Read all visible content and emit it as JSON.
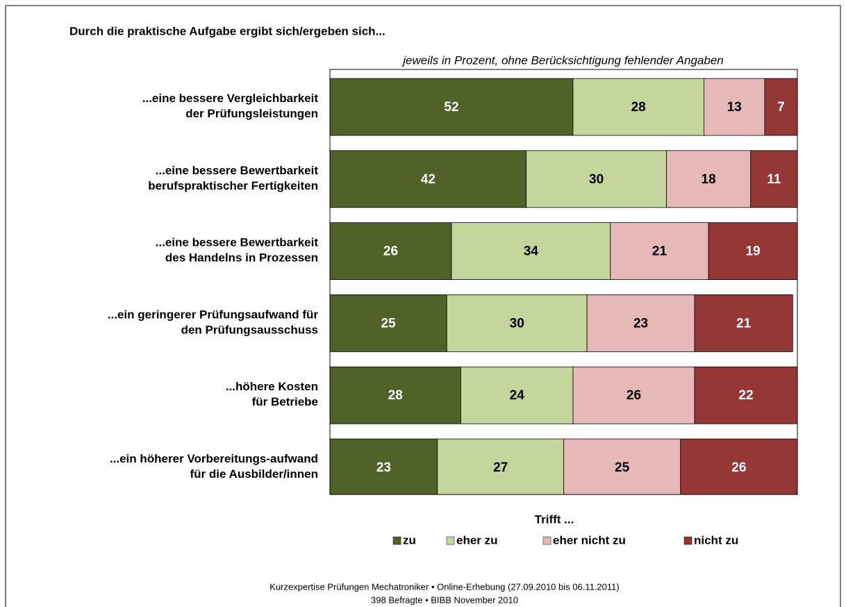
{
  "chart_data": {
    "type": "stacked_barh",
    "title": "Durch die praktische Aufgabe ergibt sich/ergeben sich...",
    "subtitle": "jeweils in Prozent, ohne Berücksichtigung fehlender Angaben",
    "categories": [
      "...eine bessere Vergleichbarkeit\nder Prüfungsleistungen",
      "...eine bessere Bewertbarkeit\nberufspraktischer Fertigkeiten",
      "...eine bessere Bewertbarkeit\ndes Handelns in Prozessen",
      "...ein geringerer Prüfungsaufwand für\nden Prüfungsausschuss",
      "...höhere Kosten\nfür Betriebe",
      "...ein höherer Vorbereitungs-aufwand\nfür die Ausbilder/innen"
    ],
    "series": [
      {
        "name": "zu",
        "color": "#4f6228",
        "values": [
          52,
          42,
          26,
          25,
          28,
          23
        ]
      },
      {
        "name": "eher zu",
        "color": "#c3d69b",
        "values": [
          28,
          30,
          34,
          30,
          24,
          27
        ]
      },
      {
        "name": "eher nicht zu",
        "color": "#e6b9b8",
        "values": [
          13,
          18,
          21,
          23,
          26,
          25
        ]
      },
      {
        "name": "nicht zu",
        "color": "#953735",
        "values": [
          7,
          11,
          19,
          21,
          22,
          26
        ]
      }
    ],
    "xlim": [
      0,
      100
    ],
    "legend_title": "Trifft ...",
    "footer": [
      "Kurzexpertise Prüfungen Mechatroniker • Online-Erhebung (27.09.2010 bis 06.11.2011)",
      "398 Befragte • BIBB November 2010"
    ]
  }
}
